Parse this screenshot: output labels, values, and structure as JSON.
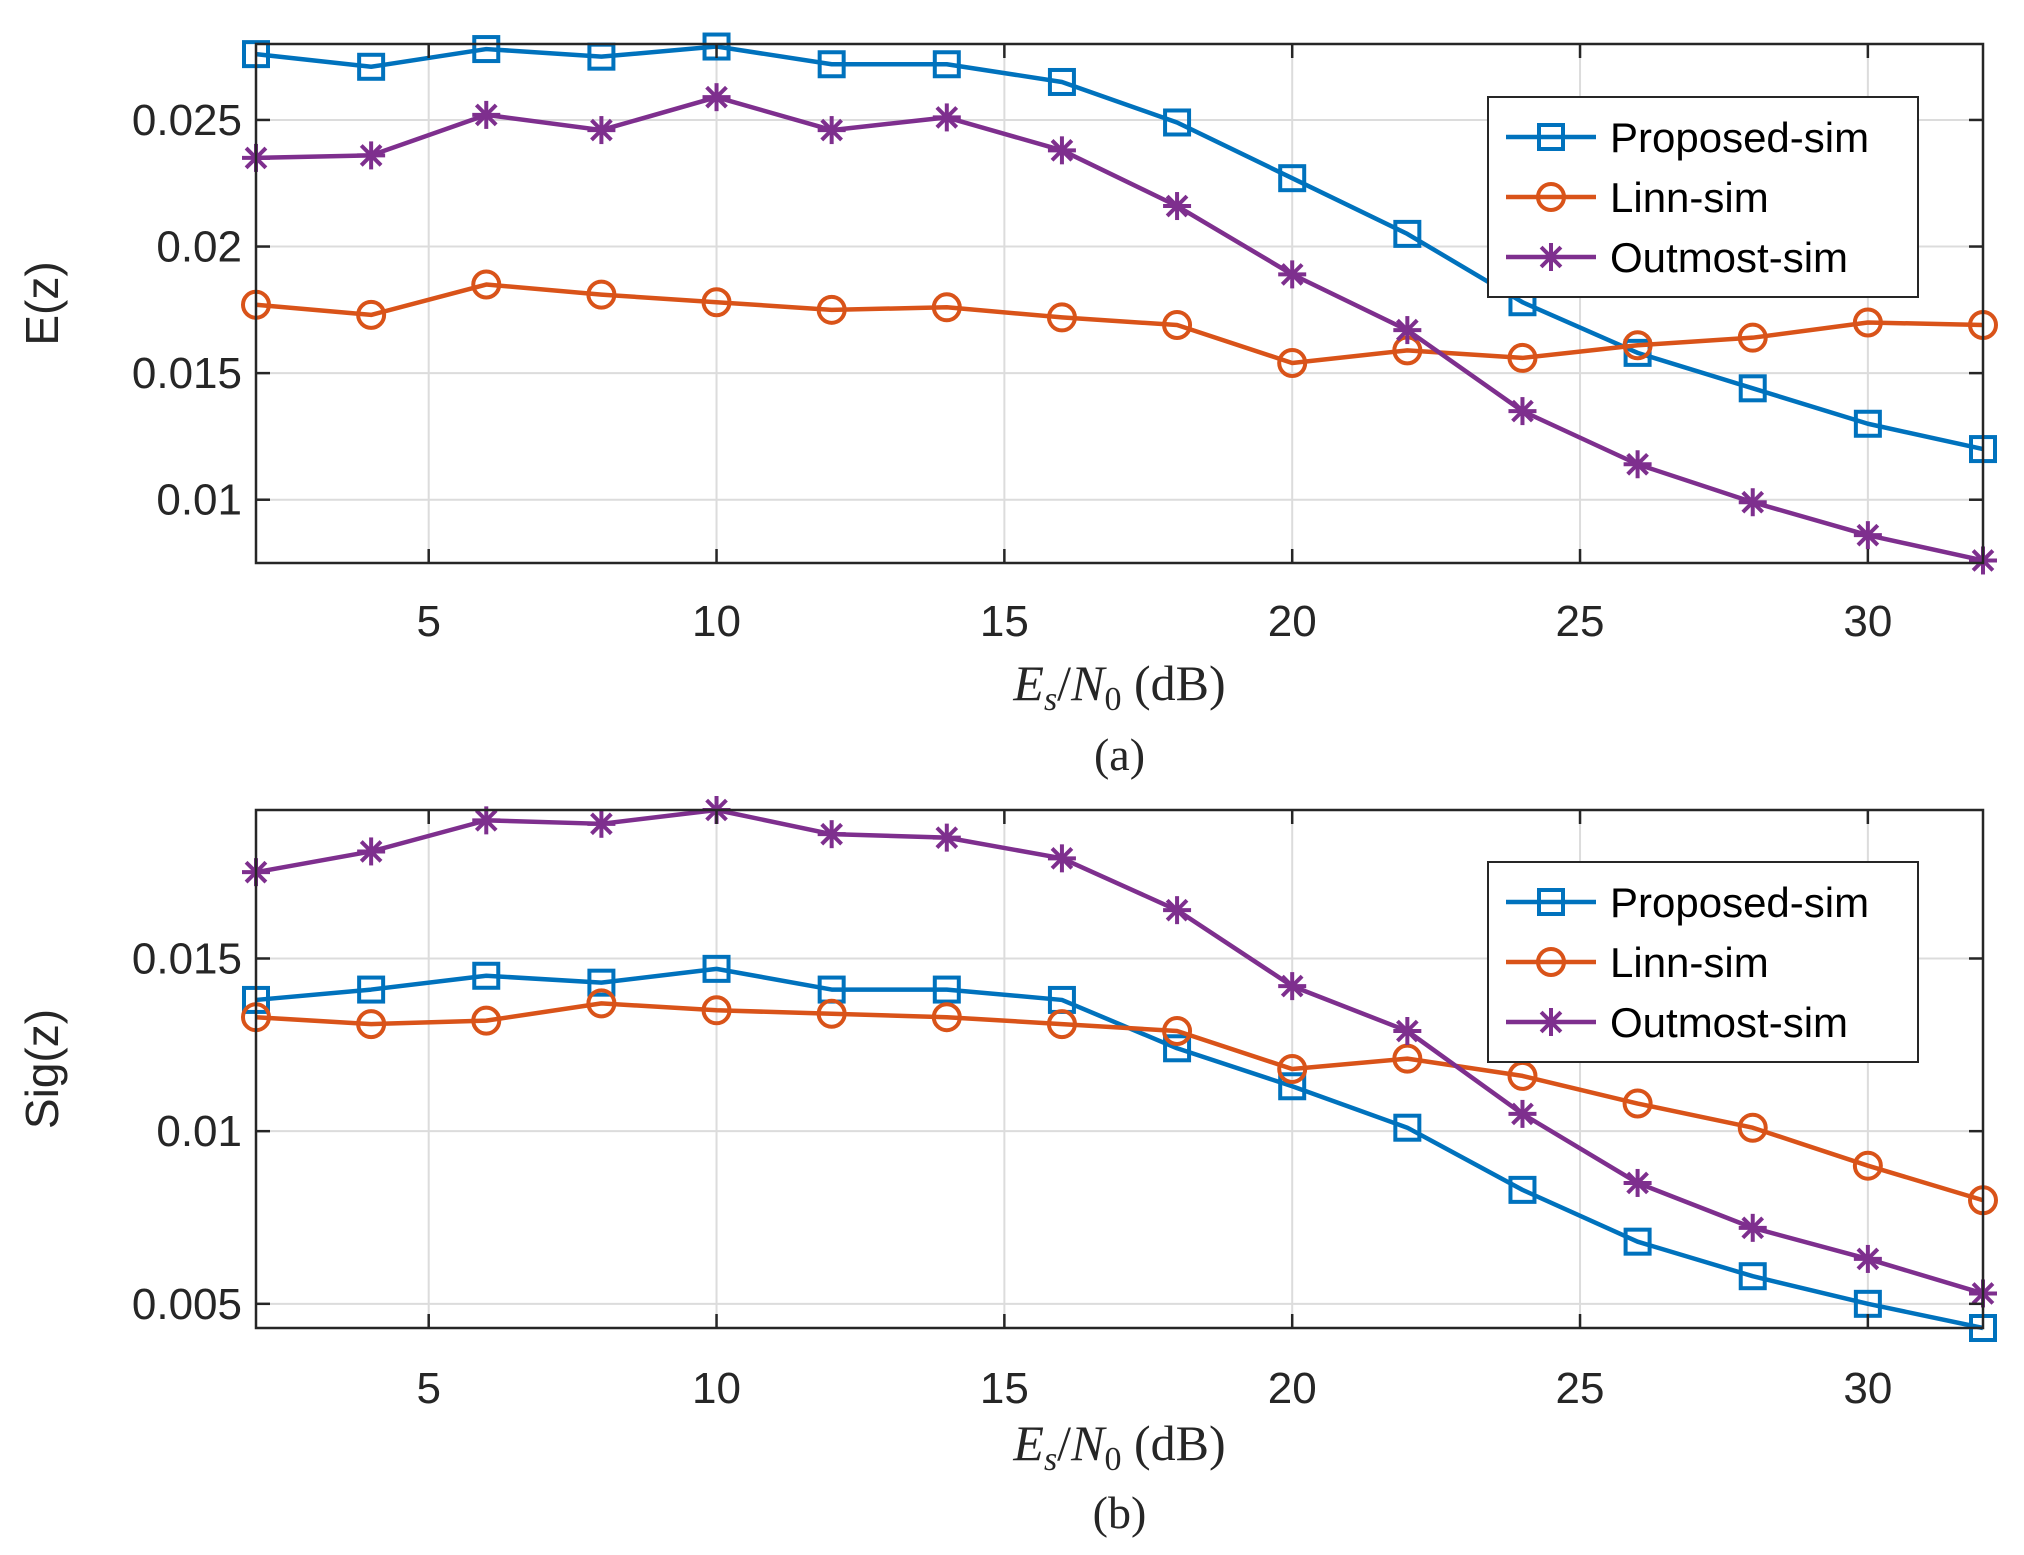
{
  "colors": {
    "proposed": "#0072BD",
    "linn": "#D95319",
    "outmost": "#7E2F8E",
    "grid": "#DCDCDC",
    "axis": "#262626"
  },
  "chart_data": [
    {
      "type": "line",
      "caption": "(a)",
      "xlabel": "E_s/N_0 (dB)",
      "ylabel": "E(z)",
      "xlim": [
        2,
        32
      ],
      "ylim": [
        0.0075,
        0.028
      ],
      "xticks": [
        5,
        10,
        15,
        20,
        25,
        30
      ],
      "yticks": [
        0.01,
        0.015,
        0.02,
        0.025
      ],
      "ytick_labels": [
        "0.01",
        "0.015",
        "0.02",
        "0.025"
      ],
      "grid": true,
      "legend_position": "top-right",
      "x": [
        2,
        4,
        6,
        8,
        10,
        12,
        14,
        16,
        18,
        20,
        22,
        24,
        26,
        28,
        30,
        32
      ],
      "series": [
        {
          "name": "Proposed-sim",
          "marker": "square",
          "color_key": "proposed",
          "values": [
            0.0276,
            0.0271,
            0.0278,
            0.0275,
            0.0279,
            0.0272,
            0.0272,
            0.0265,
            0.0249,
            0.0227,
            0.0205,
            0.0178,
            0.0158,
            0.0144,
            0.013,
            0.012
          ]
        },
        {
          "name": "Linn-sim",
          "marker": "circle",
          "color_key": "linn",
          "values": [
            0.0177,
            0.0173,
            0.0185,
            0.0181,
            0.0178,
            0.0175,
            0.0176,
            0.0172,
            0.0169,
            0.0154,
            0.0159,
            0.0156,
            0.0161,
            0.0164,
            0.017,
            0.0169
          ]
        },
        {
          "name": "Outmost-sim",
          "marker": "asterisk",
          "color_key": "outmost",
          "values": [
            0.0235,
            0.0236,
            0.0252,
            0.0246,
            0.0259,
            0.0246,
            0.0251,
            0.0238,
            0.0216,
            0.0189,
            0.0167,
            0.0135,
            0.0114,
            0.0099,
            0.0086,
            0.0076
          ]
        }
      ]
    },
    {
      "type": "line",
      "caption": "(b)",
      "xlabel": "E_s/N_0 (dB)",
      "ylabel": "Sig(z)",
      "xlim": [
        2,
        32
      ],
      "ylim": [
        0.0043,
        0.0193
      ],
      "xticks": [
        5,
        10,
        15,
        20,
        25,
        30
      ],
      "yticks": [
        0.005,
        0.01,
        0.015
      ],
      "ytick_labels": [
        "0.005",
        "0.01",
        "0.015"
      ],
      "grid": true,
      "legend_position": "top-right",
      "x": [
        2,
        4,
        6,
        8,
        10,
        12,
        14,
        16,
        18,
        20,
        22,
        24,
        26,
        28,
        30,
        32
      ],
      "series": [
        {
          "name": "Proposed-sim",
          "marker": "square",
          "color_key": "proposed",
          "values": [
            0.0138,
            0.0141,
            0.0145,
            0.0143,
            0.0147,
            0.0141,
            0.0141,
            0.0138,
            0.0124,
            0.0113,
            0.0101,
            0.0083,
            0.0068,
            0.0058,
            0.005,
            0.0043
          ]
        },
        {
          "name": "Linn-sim",
          "marker": "circle",
          "color_key": "linn",
          "values": [
            0.0133,
            0.0131,
            0.0132,
            0.0137,
            0.0135,
            0.0134,
            0.0133,
            0.0131,
            0.0129,
            0.0118,
            0.0121,
            0.0116,
            0.0108,
            0.0101,
            0.009,
            0.008
          ]
        },
        {
          "name": "Outmost-sim",
          "marker": "asterisk",
          "color_key": "outmost",
          "values": [
            0.0175,
            0.0181,
            0.019,
            0.0189,
            0.0193,
            0.0186,
            0.0185,
            0.0179,
            0.0164,
            0.0142,
            0.0129,
            0.0105,
            0.0085,
            0.0072,
            0.0063,
            0.0053
          ]
        }
      ]
    }
  ]
}
